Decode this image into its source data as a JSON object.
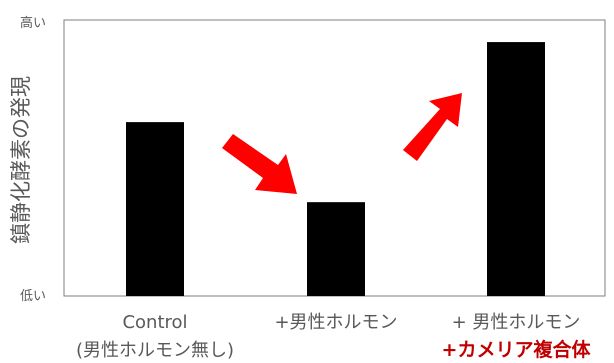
{
  "chart_data": {
    "type": "bar",
    "title": "",
    "xlabel": "",
    "ylabel": "鎮静化酵素の発現",
    "y_high_label": "高い",
    "y_low_label": "低い",
    "ylim": [
      0,
      100
    ],
    "grid": false,
    "categories": [
      {
        "line1": "Control",
        "line2": "(男性ホルモン無し)",
        "line2_color": "#595959"
      },
      {
        "line1": "+男性ホルモン",
        "line2": "",
        "line2_color": "#595959"
      },
      {
        "line1": "+ 男性ホルモン",
        "line2": "+カメリア複合体",
        "line2_color": "#c00000"
      }
    ],
    "values": [
      63,
      34,
      92
    ],
    "bar_color": "#000000",
    "arrow_color": "#ff0000",
    "axis_color": "#7f7f7f"
  }
}
